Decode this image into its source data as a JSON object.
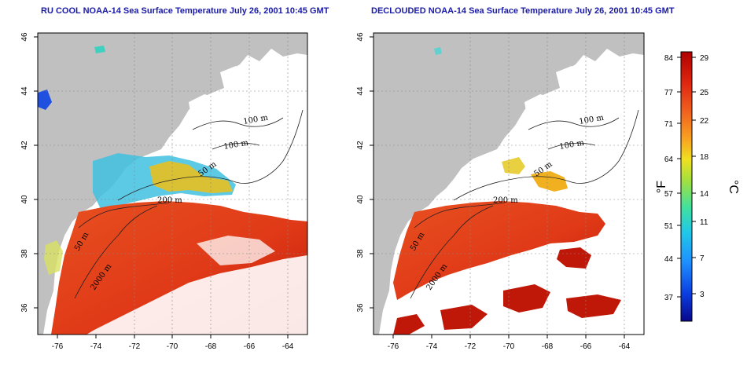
{
  "maps": [
    {
      "id": "left",
      "title": "RU COOL NOAA-14 Sea Surface Temperature July 26, 2001 10:45 GMT",
      "x_ticks": [
        "-76",
        "-74",
        "-72",
        "-70",
        "-68",
        "-66",
        "-64"
      ],
      "y_ticks": [
        "46",
        "44",
        "42",
        "40",
        "38",
        "36"
      ],
      "contour_labels": [
        "100 m",
        "100 m",
        "50 m",
        "200 m",
        "50 m",
        "2000 m"
      ]
    },
    {
      "id": "right",
      "title": "DECLOUDED NOAA-14 Sea Surface Temperature July 26, 2001 10:45 GMT",
      "x_ticks": [
        "-76",
        "-74",
        "-72",
        "-70",
        "-68",
        "-66",
        "-64"
      ],
      "y_ticks": [
        "46",
        "44",
        "42",
        "40",
        "38",
        "36"
      ],
      "contour_labels": [
        "100 m",
        "100 m",
        "50 m",
        "200 m",
        "50 m",
        "2000 m"
      ]
    }
  ],
  "colorbar": {
    "fahrenheit_label": "°F",
    "celsius_label": "°C",
    "fahrenheit_ticks": [
      "84",
      "77",
      "71",
      "64",
      "57",
      "51",
      "44",
      "37"
    ],
    "celsius_ticks": [
      "29",
      "25",
      "22",
      "18",
      "14",
      "11",
      "7",
      "3"
    ],
    "colors": [
      "#08088a",
      "#0a3ce0",
      "#1e90ff",
      "#20c8e8",
      "#40e0a0",
      "#a0e040",
      "#f0e020",
      "#f8a020",
      "#f06020",
      "#e02810",
      "#b00000"
    ]
  },
  "colors": {
    "land": "#c0c0c0",
    "ocean_warm": "#e8401c",
    "ocean_hot": "#c01808",
    "title": "#1a1aa8"
  }
}
